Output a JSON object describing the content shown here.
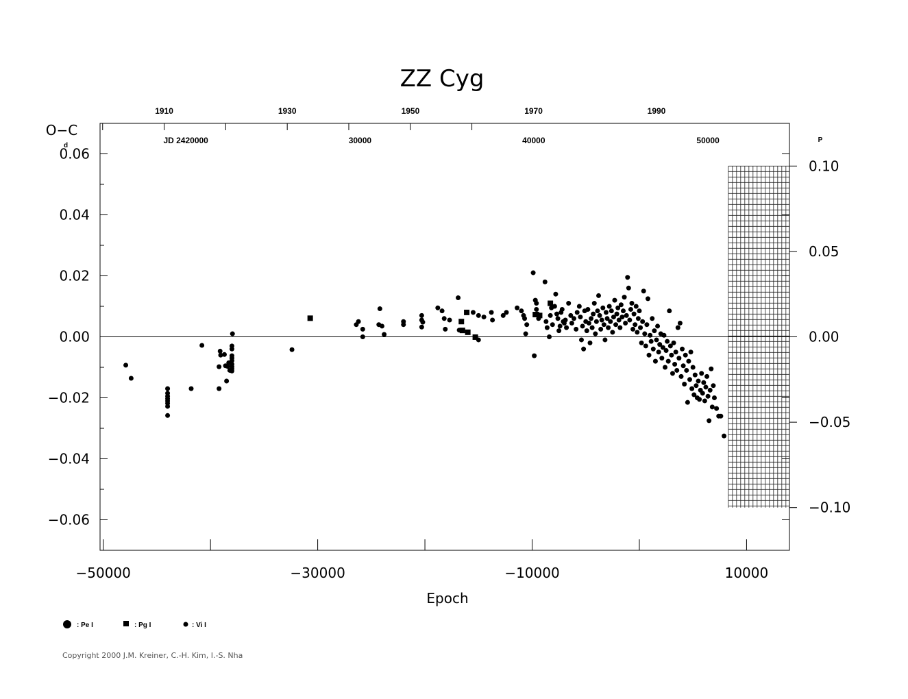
{
  "chart_data": {
    "type": "scatter",
    "title": "ZZ  Cyg",
    "xlabel": "Epoch",
    "ylabel": "O−C",
    "ylabel_unit": "d",
    "right_unit": "P",
    "xlim": [
      -50300,
      14000
    ],
    "ylim": [
      -0.07,
      0.07
    ],
    "right_ylim": [
      -0.125,
      0.125
    ],
    "x_ticks": [
      -50000,
      -30000,
      -10000,
      10000
    ],
    "x_tick_labels": [
      "−50000",
      "−30000",
      "−10000",
      "10000"
    ],
    "y_ticks": [
      -0.06,
      -0.04,
      -0.02,
      0.0,
      0.02,
      0.04,
      0.06
    ],
    "y_tick_labels": [
      "−0.06",
      "−0.04",
      "−0.02",
      "0.00",
      "0.02",
      "0.04",
      "0.06"
    ],
    "right_ticks": [
      -0.1,
      -0.05,
      0.0,
      0.05,
      0.1
    ],
    "right_tick_labels": [
      "−0.10",
      "−0.05",
      "0.00",
      "0.05",
      "0.10"
    ],
    "year_ticks": [
      {
        "epoch": -44320,
        "label": "1910"
      },
      {
        "epoch": -32840,
        "label": "1930"
      },
      {
        "epoch": -21350,
        "label": "1950"
      },
      {
        "epoch": -9870,
        "label": "1970"
      },
      {
        "epoch": 1600,
        "label": "1990"
      }
    ],
    "jd_ticks": [
      {
        "epoch": -42300,
        "label": "JD  2420000"
      },
      {
        "epoch": -26050,
        "label": "30000"
      },
      {
        "epoch": -9850,
        "label": "40000"
      },
      {
        "epoch": 6400,
        "label": "50000"
      }
    ],
    "series": [
      {
        "name": "Pe I",
        "marker": "large-circle",
        "points": []
      },
      {
        "name": "Pg I",
        "marker": "square",
        "points": [
          [
            -30700,
            0.0061
          ],
          [
            -16600,
            0.005
          ],
          [
            -16100,
            0.008
          ],
          [
            -16500,
            0.0021
          ],
          [
            -16000,
            0.0015
          ],
          [
            -15300,
            -0.0001
          ],
          [
            -9700,
            0.0073
          ],
          [
            -9300,
            0.007
          ],
          [
            -8300,
            0.011
          ]
        ]
      },
      {
        "name": "Vi I",
        "marker": "small-circle",
        "points": [
          [
            -47900,
            -0.0093
          ],
          [
            -47400,
            -0.0136
          ],
          [
            -44000,
            -0.017
          ],
          [
            -44000,
            -0.0185
          ],
          [
            -44000,
            -0.0195
          ],
          [
            -44000,
            -0.0203
          ],
          [
            -44000,
            -0.021
          ],
          [
            -44000,
            -0.0218
          ],
          [
            -44000,
            -0.0228
          ],
          [
            -44000,
            -0.0258
          ],
          [
            -41800,
            -0.017
          ],
          [
            -40800,
            -0.0028
          ],
          [
            -39200,
            -0.0098
          ],
          [
            -39100,
            -0.0047
          ],
          [
            -39050,
            -0.006
          ],
          [
            -39200,
            -0.017
          ],
          [
            -38700,
            -0.0058
          ],
          [
            -38600,
            -0.0095
          ],
          [
            -38500,
            -0.0145
          ],
          [
            -38400,
            -0.0097
          ],
          [
            -38300,
            -0.0085
          ],
          [
            -38200,
            -0.011
          ],
          [
            -38000,
            -0.003
          ],
          [
            -38000,
            -0.004
          ],
          [
            -38000,
            -0.0062
          ],
          [
            -38000,
            -0.007
          ],
          [
            -38000,
            -0.0078
          ],
          [
            -38000,
            -0.009
          ],
          [
            -38000,
            -0.0098
          ],
          [
            -38000,
            -0.0105
          ],
          [
            -38000,
            -0.0112
          ],
          [
            -37950,
            0.001
          ],
          [
            -32400,
            -0.0042
          ],
          [
            -26400,
            0.004
          ],
          [
            -26200,
            0.005
          ],
          [
            -25800,
            0.0025
          ],
          [
            -25800,
            0.0
          ],
          [
            -24300,
            0.004
          ],
          [
            -24200,
            0.0092
          ],
          [
            -24000,
            0.0035
          ],
          [
            -23800,
            0.0008
          ],
          [
            -22000,
            0.005
          ],
          [
            -22000,
            0.004
          ],
          [
            -20300,
            0.007
          ],
          [
            -20300,
            0.0055
          ],
          [
            -20200,
            0.0048
          ],
          [
            -20300,
            0.0032
          ],
          [
            -18800,
            0.0095
          ],
          [
            -18400,
            0.0085
          ],
          [
            -18200,
            0.006
          ],
          [
            -18100,
            0.0025
          ],
          [
            -17700,
            0.0055
          ],
          [
            -16900,
            0.0128
          ],
          [
            -16800,
            0.0022
          ],
          [
            -15500,
            0.008
          ],
          [
            -15000,
            0.007
          ],
          [
            -15000,
            -0.001
          ],
          [
            -14500,
            0.0065
          ],
          [
            -13800,
            0.008
          ],
          [
            -13700,
            0.0055
          ],
          [
            -12700,
            0.007
          ],
          [
            -12400,
            0.008
          ],
          [
            -11400,
            0.0095
          ],
          [
            -11000,
            0.0085
          ],
          [
            -10800,
            0.007
          ],
          [
            -10700,
            0.006
          ],
          [
            -10600,
            0.001
          ],
          [
            -10500,
            0.004
          ],
          [
            -9900,
            0.021
          ],
          [
            -9800,
            -0.0062
          ],
          [
            -9700,
            0.012
          ],
          [
            -9600,
            0.011
          ],
          [
            -9600,
            0.009
          ],
          [
            -9500,
            0.0075
          ],
          [
            -9400,
            0.006
          ],
          [
            -8800,
            0.018
          ],
          [
            -8700,
            0.005
          ],
          [
            -8600,
            0.003
          ],
          [
            -8400,
            0.0
          ],
          [
            -8300,
            0.007
          ],
          [
            -8200,
            0.0095
          ],
          [
            -8100,
            0.004
          ],
          [
            -7900,
            0.01
          ],
          [
            -7800,
            0.014
          ],
          [
            -7700,
            0.0075
          ],
          [
            -7600,
            0.006
          ],
          [
            -7500,
            0.002
          ],
          [
            -7400,
            0.0035
          ],
          [
            -7300,
            0.008
          ],
          [
            -7200,
            0.009
          ],
          [
            -7100,
            0.005
          ],
          [
            -7000,
            0.0045
          ],
          [
            -6900,
            0.0055
          ],
          [
            -6800,
            0.003
          ],
          [
            -6600,
            0.011
          ],
          [
            -6400,
            0.007
          ],
          [
            -6300,
            0.0045
          ],
          [
            -6100,
            0.006
          ],
          [
            -5900,
            0.0025
          ],
          [
            -5800,
            0.008
          ],
          [
            -5600,
            0.01
          ],
          [
            -5500,
            0.0065
          ],
          [
            -5400,
            -0.001
          ],
          [
            -5300,
            0.0035
          ],
          [
            -5200,
            -0.004
          ],
          [
            -5100,
            0.0085
          ],
          [
            -5000,
            0.005
          ],
          [
            -4900,
            0.002
          ],
          [
            -4800,
            0.009
          ],
          [
            -4700,
            0.0045
          ],
          [
            -4600,
            -0.002
          ],
          [
            -4500,
            0.006
          ],
          [
            -4400,
            0.003
          ],
          [
            -4300,
            0.0075
          ],
          [
            -4200,
            0.011
          ],
          [
            -4100,
            0.001
          ],
          [
            -4000,
            0.005
          ],
          [
            -3900,
            0.0085
          ],
          [
            -3800,
            0.0135
          ],
          [
            -3700,
            0.007
          ],
          [
            -3600,
            0.0025
          ],
          [
            -3500,
            0.0055
          ],
          [
            -3400,
            0.0095
          ],
          [
            -3300,
            0.004
          ],
          [
            -3200,
            -0.001
          ],
          [
            -3100,
            0.008
          ],
          [
            -3000,
            0.006
          ],
          [
            -2900,
            0.003
          ],
          [
            -2800,
            0.01
          ],
          [
            -2700,
            0.005
          ],
          [
            -2600,
            0.0085
          ],
          [
            -2500,
            0.0015
          ],
          [
            -2400,
            0.0065
          ],
          [
            -2300,
            0.012
          ],
          [
            -2200,
            0.004
          ],
          [
            -2100,
            0.0075
          ],
          [
            -2000,
            0.0095
          ],
          [
            -1900,
            0.0055
          ],
          [
            -1800,
            0.003
          ],
          [
            -1700,
            0.0105
          ],
          [
            -1600,
            0.0065
          ],
          [
            -1500,
            0.0085
          ],
          [
            -1400,
            0.013
          ],
          [
            -1300,
            0.0045
          ],
          [
            -1200,
            0.007
          ],
          [
            -1100,
            0.0195
          ],
          [
            -1000,
            0.016
          ],
          [
            -900,
            0.0055
          ],
          [
            -800,
            0.009
          ],
          [
            -700,
            0.011
          ],
          [
            -600,
            0.0025
          ],
          [
            -500,
            0.0075
          ],
          [
            -400,
            0.004
          ],
          [
            -300,
            0.01
          ],
          [
            -200,
            0.0015
          ],
          [
            -100,
            0.006
          ],
          [
            0,
            0.0085
          ],
          [
            100,
            0.003
          ],
          [
            200,
            -0.002
          ],
          [
            300,
            0.005
          ],
          [
            400,
            0.015
          ],
          [
            500,
            0.001
          ],
          [
            600,
            -0.003
          ],
          [
            700,
            0.004
          ],
          [
            800,
            0.0125
          ],
          [
            900,
            -0.006
          ],
          [
            1000,
            0.0005
          ],
          [
            1100,
            -0.0015
          ],
          [
            1200,
            0.006
          ],
          [
            1300,
            -0.004
          ],
          [
            1400,
            0.002
          ],
          [
            1500,
            -0.008
          ],
          [
            1600,
            -0.001
          ],
          [
            1700,
            0.0035
          ],
          [
            1800,
            -0.005
          ],
          [
            1900,
            -0.0025
          ],
          [
            2000,
            0.001
          ],
          [
            2100,
            -0.007
          ],
          [
            2200,
            -0.0035
          ],
          [
            2300,
            0.0005
          ],
          [
            2400,
            -0.01
          ],
          [
            2500,
            -0.0045
          ],
          [
            2600,
            -0.0015
          ],
          [
            2700,
            -0.008
          ],
          [
            2800,
            0.0085
          ],
          [
            2900,
            -0.003
          ],
          [
            3000,
            -0.006
          ],
          [
            3100,
            -0.012
          ],
          [
            3200,
            -0.002
          ],
          [
            3300,
            -0.009
          ],
          [
            3400,
            -0.005
          ],
          [
            3500,
            -0.011
          ],
          [
            3600,
            0.003
          ],
          [
            3700,
            -0.007
          ],
          [
            3800,
            0.0045
          ],
          [
            3900,
            -0.013
          ],
          [
            4000,
            -0.004
          ],
          [
            4100,
            -0.0095
          ],
          [
            4200,
            -0.0155
          ],
          [
            4300,
            -0.006
          ],
          [
            4400,
            -0.011
          ],
          [
            4500,
            -0.0215
          ],
          [
            4600,
            -0.008
          ],
          [
            4700,
            -0.014
          ],
          [
            4800,
            -0.005
          ],
          [
            4900,
            -0.017
          ],
          [
            5000,
            -0.01
          ],
          [
            5100,
            -0.019
          ],
          [
            5200,
            -0.0125
          ],
          [
            5300,
            -0.016
          ],
          [
            5400,
            -0.02
          ],
          [
            5500,
            -0.0145
          ],
          [
            5600,
            -0.0205
          ],
          [
            5700,
            -0.0175
          ],
          [
            5800,
            -0.012
          ],
          [
            5900,
            -0.0185
          ],
          [
            6000,
            -0.015
          ],
          [
            6100,
            -0.021
          ],
          [
            6200,
            -0.0165
          ],
          [
            6300,
            -0.013
          ],
          [
            6400,
            -0.0195
          ],
          [
            6500,
            -0.0275
          ],
          [
            6600,
            -0.0175
          ],
          [
            6700,
            -0.0105
          ],
          [
            6800,
            -0.023
          ],
          [
            6900,
            -0.016
          ],
          [
            7000,
            -0.02
          ],
          [
            7200,
            -0.0235
          ],
          [
            7400,
            -0.026
          ],
          [
            7600,
            -0.026
          ],
          [
            7900,
            -0.0325
          ]
        ]
      }
    ],
    "legend": "bottom-left",
    "reference_line": 0.0,
    "grid": false
  },
  "legend_items": [
    {
      "label": ": Pe I"
    },
    {
      "label": ": Pg I"
    },
    {
      "label": ": Vi I"
    }
  ],
  "copyright": "Copyright 2000 J.M. Kreiner, C.-H. Kim, I.-S. Nha"
}
